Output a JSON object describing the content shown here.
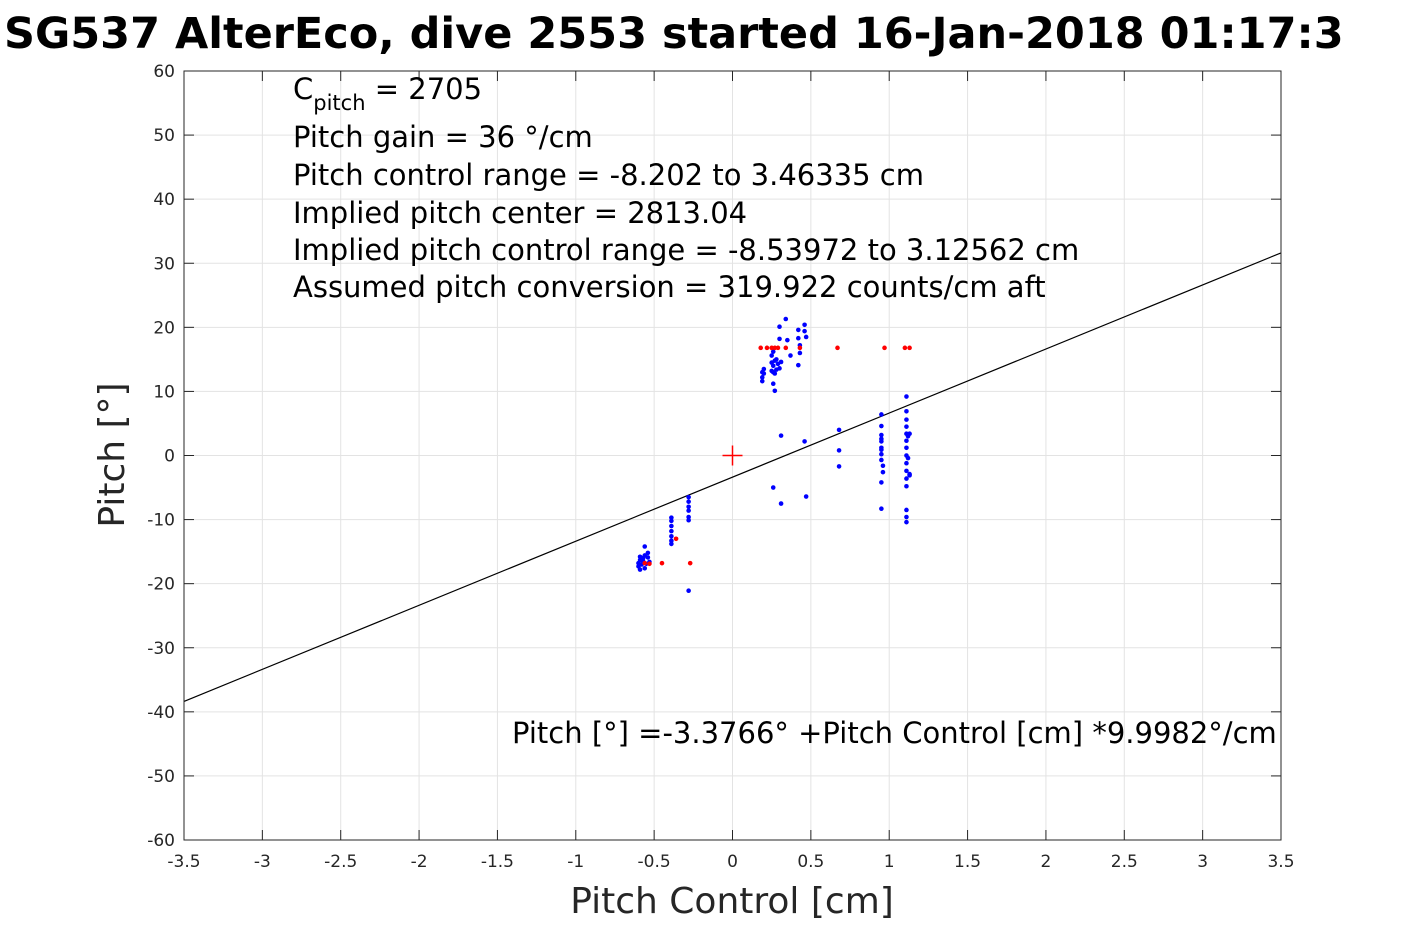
{
  "chart_data": {
    "type": "scatter",
    "title": "SG537 AlterEco, dive 2553 started 16-Jan-2018 01:17:3",
    "xlabel": "Pitch Control [cm]",
    "ylabel": "Pitch [°]",
    "xlim": [
      -3.5,
      3.5
    ],
    "ylim": [
      -60,
      60
    ],
    "grid": true,
    "xticks": [
      -3.5,
      -3,
      -2.5,
      -2,
      -1.5,
      -1,
      -0.5,
      0,
      0.5,
      1,
      1.5,
      2,
      2.5,
      3,
      3.5
    ],
    "xtick_labels": [
      "-3.5",
      "-3",
      "-2.5",
      "-2",
      "-1.5",
      "-1",
      "-0.5",
      "0",
      "0.5",
      "1",
      "1.5",
      "2",
      "2.5",
      "3",
      "3.5"
    ],
    "yticks": [
      -60,
      -50,
      -40,
      -30,
      -20,
      -10,
      0,
      10,
      20,
      30,
      40,
      50,
      60
    ],
    "ytick_labels": [
      "-60",
      "-50",
      "-40",
      "-30",
      "-20",
      "-10",
      "0",
      "10",
      "20",
      "30",
      "40",
      "50",
      "60"
    ],
    "annotations": {
      "cpitch_main": "C",
      "cpitch_sub": "pitch",
      "cpitch_value": " = 2705",
      "lines": [
        "Pitch gain = 36 °/cm",
        "Pitch control range = -8.202 to 3.46335 cm",
        "Implied pitch center = 2813.04",
        "Implied pitch control range = -8.53972 to 3.12562 cm",
        "Assumed pitch conversion = 319.922 counts/cm aft"
      ],
      "fit_label": "Pitch [°] =-3.3766° +Pitch Control [cm] *9.9982°/cm"
    },
    "fit_line": {
      "intercept": -3.3766,
      "slope": 9.9982,
      "color": "#000000"
    },
    "center_marker": {
      "x": 0,
      "y": 0,
      "color": "#ff0000"
    },
    "series": [
      {
        "color": "#0000ff",
        "points": [
          [
            -0.59,
            -15.8
          ],
          [
            -0.59,
            -16.3
          ],
          [
            -0.6,
            -16.8
          ],
          [
            -0.6,
            -17.3
          ],
          [
            -0.59,
            -17.8
          ],
          [
            -0.58,
            -17.0
          ],
          [
            -0.57,
            -16.5
          ],
          [
            -0.57,
            -16.0
          ],
          [
            -0.56,
            -15.6
          ],
          [
            -0.56,
            -14.2
          ],
          [
            -0.56,
            -17.6
          ],
          [
            -0.55,
            -16.9
          ],
          [
            -0.54,
            -15.2
          ],
          [
            -0.54,
            -15.9
          ],
          [
            -0.53,
            -16.6
          ],
          [
            -0.39,
            -9.7
          ],
          [
            -0.39,
            -10.2
          ],
          [
            -0.39,
            -11.0
          ],
          [
            -0.39,
            -11.8
          ],
          [
            -0.39,
            -12.6
          ],
          [
            -0.39,
            -13.3
          ],
          [
            -0.39,
            -13.8
          ],
          [
            -0.28,
            -6.5
          ],
          [
            -0.28,
            -7.2
          ],
          [
            -0.28,
            -8.0
          ],
          [
            -0.28,
            -8.6
          ],
          [
            -0.28,
            -9.6
          ],
          [
            -0.28,
            -10.1
          ],
          [
            -0.28,
            -21.1
          ],
          [
            0.19,
            13.0
          ],
          [
            0.19,
            12.2
          ],
          [
            0.19,
            11.6
          ],
          [
            0.2,
            13.5
          ],
          [
            0.2,
            12.8
          ],
          [
            0.25,
            13.2
          ],
          [
            0.25,
            14.5
          ],
          [
            0.25,
            15.6
          ],
          [
            0.26,
            14.0
          ],
          [
            0.26,
            16.2
          ],
          [
            0.26,
            13.0
          ],
          [
            0.26,
            11.2
          ],
          [
            0.27,
            12.8
          ],
          [
            0.27,
            14.8
          ],
          [
            0.27,
            10.1
          ],
          [
            0.28,
            13.4
          ],
          [
            0.28,
            15.0
          ],
          [
            0.29,
            14.3
          ],
          [
            0.3,
            13.6
          ],
          [
            0.3,
            18.2
          ],
          [
            0.3,
            20.1
          ],
          [
            0.31,
            14.6
          ],
          [
            0.31,
            3.1
          ],
          [
            0.34,
            21.3
          ],
          [
            0.35,
            18.0
          ],
          [
            0.37,
            15.6
          ],
          [
            0.42,
            19.6
          ],
          [
            0.42,
            18.3
          ],
          [
            0.43,
            17.2
          ],
          [
            0.43,
            16.0
          ],
          [
            0.42,
            14.1
          ],
          [
            0.46,
            20.4
          ],
          [
            0.46,
            19.4
          ],
          [
            0.47,
            18.5
          ],
          [
            0.26,
            -5.0
          ],
          [
            0.31,
            -7.5
          ],
          [
            0.46,
            2.2
          ],
          [
            0.47,
            -6.4
          ],
          [
            0.68,
            4.0
          ],
          [
            0.68,
            0.8
          ],
          [
            0.68,
            -1.7
          ],
          [
            0.95,
            6.4
          ],
          [
            0.95,
            4.6
          ],
          [
            0.95,
            3.2
          ],
          [
            0.95,
            2.2
          ],
          [
            0.95,
            1.2
          ],
          [
            0.95,
            0.2
          ],
          [
            0.95,
            -0.7
          ],
          [
            0.96,
            -1.6
          ],
          [
            0.96,
            -2.6
          ],
          [
            0.95,
            -4.2
          ],
          [
            0.95,
            -8.3
          ],
          [
            0.95,
            2.6
          ],
          [
            0.95,
            0.9
          ],
          [
            1.11,
            9.2
          ],
          [
            1.11,
            6.9
          ],
          [
            1.11,
            5.6
          ],
          [
            1.11,
            4.5
          ],
          [
            1.11,
            3.4
          ],
          [
            1.11,
            2.3
          ],
          [
            1.11,
            1.2
          ],
          [
            1.11,
            0.0
          ],
          [
            1.11,
            -1.2
          ],
          [
            1.11,
            -2.4
          ],
          [
            1.11,
            -3.6
          ],
          [
            1.11,
            -4.8
          ],
          [
            1.11,
            -8.5
          ],
          [
            1.11,
            -9.6
          ],
          [
            1.11,
            -10.4
          ],
          [
            1.12,
            3.0
          ],
          [
            1.12,
            -0.4
          ],
          [
            1.13,
            3.4
          ],
          [
            1.13,
            -2.9
          ],
          [
            1.13,
            -3.1
          ]
        ]
      },
      {
        "color": "#ff0000",
        "points": [
          [
            -0.56,
            -16.8
          ],
          [
            -0.53,
            -16.9
          ],
          [
            -0.45,
            -16.8
          ],
          [
            -0.36,
            -13.0
          ],
          [
            -0.27,
            -16.8
          ],
          [
            0.18,
            16.8
          ],
          [
            0.22,
            16.8
          ],
          [
            0.25,
            16.8
          ],
          [
            0.27,
            16.8
          ],
          [
            0.29,
            16.8
          ],
          [
            0.34,
            16.8
          ],
          [
            0.43,
            16.8
          ],
          [
            0.67,
            16.8
          ],
          [
            0.97,
            16.8
          ],
          [
            1.1,
            16.8
          ],
          [
            1.13,
            16.8
          ]
        ]
      }
    ]
  }
}
